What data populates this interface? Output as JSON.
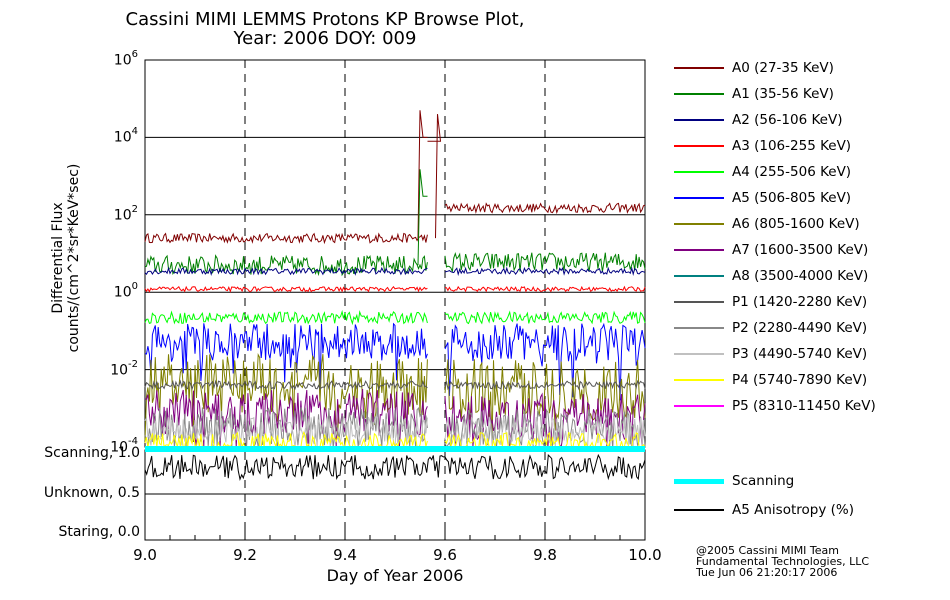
{
  "title": "Cassini MIMI LEMMS Protons KP Browse Plot,",
  "subtitle": "Year: 2006 DOY: 009",
  "y_axis_label_line1": "Differential Flux",
  "y_axis_label_line2": "counts/(cm^2*sr*KeV*sec)",
  "x_axis_label": "Day of Year 2006",
  "credits": [
    "@2005 Cassini MIMI Team",
    "Fundamental Technologies, LLC",
    "Tue Jun 06 21:20:17 2006"
  ],
  "colors": {
    "A0": "#800000",
    "A1": "#008000",
    "A2": "#000080",
    "A3": "#ff0000",
    "A4": "#00ff00",
    "A5": "#0000ff",
    "A6": "#808000",
    "A7": "#800080",
    "A8": "#008080",
    "P1": "#555555",
    "P2": "#888888",
    "P3": "#c0c0c0",
    "P4": "#ffff00",
    "P5": "#ff00ff",
    "scanning": "#00ffff",
    "anisotropy": "#000000"
  },
  "legend": [
    {
      "key": "A0",
      "label": "A0 (27-35 KeV)"
    },
    {
      "key": "A1",
      "label": "A1 (35-56 KeV)"
    },
    {
      "key": "A2",
      "label": "A2 (56-106 KeV)"
    },
    {
      "key": "A3",
      "label": "A3 (106-255 KeV)"
    },
    {
      "key": "A4",
      "label": "A4 (255-506 KeV)"
    },
    {
      "key": "A5",
      "label": "A5 (506-805 KeV)"
    },
    {
      "key": "A6",
      "label": "A6 (805-1600 KeV)"
    },
    {
      "key": "A7",
      "label": "A7 (1600-3500 KeV)"
    },
    {
      "key": "A8",
      "label": "A8 (3500-4000 KeV)"
    },
    {
      "key": "P1",
      "label": "P1 (1420-2280 KeV)"
    },
    {
      "key": "P2",
      "label": "P2 (2280-4490 KeV)"
    },
    {
      "key": "P3",
      "label": "P3 (4490-5740 KeV)"
    },
    {
      "key": "P4",
      "label": "P4 (5740-7890 KeV)"
    },
    {
      "key": "P5",
      "label": "P5 (8310-11450 KeV)"
    }
  ],
  "legend_lower": [
    {
      "key": "scanning",
      "label": "Scanning"
    },
    {
      "key": "anisotropy",
      "label": "A5 Anisotropy (%)"
    }
  ],
  "chart_data": {
    "type": "line",
    "x_range": [
      9.0,
      10.0
    ],
    "x_ticks": [
      "9.0",
      "9.2",
      "9.4",
      "9.6",
      "9.8",
      "10.0"
    ],
    "y_scale": "log",
    "y_range": [
      0.0001,
      1000000
    ],
    "y_ticks": [
      {
        "base": "10",
        "exp": "6",
        "value": 1000000
      },
      {
        "base": "10",
        "exp": "4",
        "value": 10000
      },
      {
        "base": "10",
        "exp": "2",
        "value": 100
      },
      {
        "base": "10",
        "exp": "0",
        "value": 1
      },
      {
        "base": "10",
        "exp": "-2",
        "value": 0.01
      },
      {
        "base": "10",
        "exp": "-4",
        "value": 0.0001
      }
    ],
    "scan_ticks": [
      "Scanning, 1.0",
      "Unknown, 0.5",
      "Staring, 0.0"
    ],
    "series": [
      {
        "key": "A0",
        "level": 25,
        "after_gap_level": 150,
        "noise": 0.12,
        "spike": [
          {
            "x": 9.55,
            "y": 50000
          },
          {
            "x": 9.585,
            "y": 40000
          }
        ]
      },
      {
        "key": "A1",
        "level": 5,
        "after_gap_level": 6,
        "noise": 0.25,
        "spike": [
          {
            "x": 9.55,
            "y": 1500
          }
        ]
      },
      {
        "key": "A2",
        "level": 3.5,
        "after_gap_level": 3.5,
        "noise": 0.08
      },
      {
        "key": "A3",
        "level": 1.2,
        "after_gap_level": 1.2,
        "noise": 0.06
      },
      {
        "key": "A4",
        "level": 0.22,
        "after_gap_level": 0.22,
        "noise": 0.15
      },
      {
        "key": "A5",
        "level": 0.05,
        "after_gap_level": 0.05,
        "noise": 0.5
      },
      {
        "key": "A6",
        "level": 0.004,
        "after_gap_level": 0.003,
        "noise": 0.8
      },
      {
        "key": "A7",
        "level": 0.0008,
        "after_gap_level": 0.0006,
        "noise": 0.6
      },
      {
        "key": "P1",
        "level": 0.004,
        "after_gap_level": 0.004,
        "noise": 0.1
      },
      {
        "key": "P2",
        "level": 0.00035,
        "after_gap_level": 0.0003,
        "noise": 0.5
      },
      {
        "key": "P3",
        "level": 0.00025,
        "after_gap_level": 0.00025,
        "noise": 0.4
      },
      {
        "key": "P4",
        "level": 0.00012,
        "after_gap_level": 0.00012,
        "noise": 0.3
      }
    ],
    "data_gap": [
      9.565,
      9.6
    ],
    "scanning_value": 1.0,
    "anisotropy": {
      "mean": 0.85,
      "spread": 0.15
    }
  }
}
